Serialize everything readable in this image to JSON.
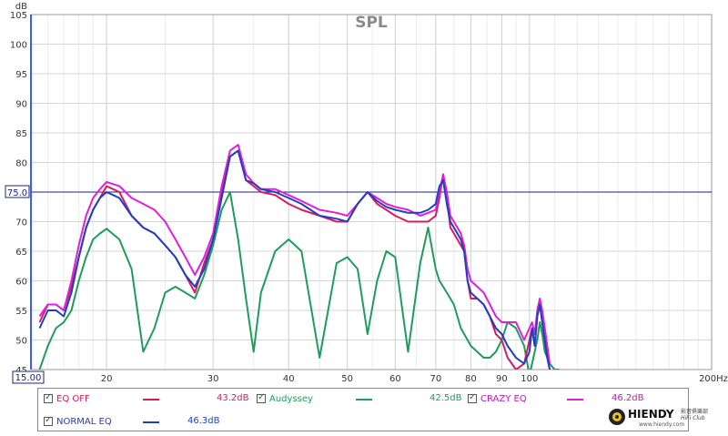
{
  "chart_data": {
    "type": "line",
    "title": "SPL",
    "ylabel": "dB",
    "x_unit": "Hz",
    "xlim": [
      15,
      200
    ],
    "ylim": [
      45,
      105
    ],
    "x_ticks": [
      20,
      30,
      40,
      50,
      60,
      70,
      80,
      90,
      100,
      200
    ],
    "x_tick_labels": [
      "20",
      "30",
      "40",
      "50",
      "60",
      "70",
      "80",
      "90",
      "100",
      "200Hz"
    ],
    "x_start_label": "15.00",
    "y_ticks": [
      45,
      50,
      55,
      60,
      65,
      70,
      75,
      80,
      85,
      90,
      95,
      100,
      105
    ],
    "reference_line": {
      "y": 75,
      "label": "75.0",
      "color": "#1a237e"
    },
    "series": [
      {
        "name": "EQ OFF",
        "color": "#d81b60",
        "level": "43.2dB",
        "x": [
          15.5,
          16,
          16.5,
          17,
          17.5,
          18,
          18.5,
          19,
          19.5,
          20,
          21,
          22,
          23,
          24,
          25,
          26,
          27,
          28,
          29,
          30,
          31,
          32,
          33,
          34,
          35,
          36,
          38,
          40,
          42,
          45,
          48,
          50,
          52,
          54,
          56,
          58,
          60,
          63,
          66,
          68,
          70,
          71,
          72,
          73,
          74,
          75,
          76,
          77,
          78,
          79,
          80,
          82,
          84,
          86,
          88,
          90,
          92,
          95,
          98,
          100,
          101,
          102,
          103,
          104,
          105,
          106,
          107,
          108
        ],
        "y": [
          53,
          56,
          56,
          55,
          59,
          64,
          69,
          72,
          74,
          76,
          75,
          71,
          69,
          68,
          66,
          64,
          61,
          58,
          63,
          67,
          75,
          81,
          82,
          77,
          76,
          75,
          74.5,
          73,
          72,
          71,
          70,
          70,
          73,
          75,
          73,
          72,
          71,
          70,
          70,
          70,
          71,
          74,
          78,
          74,
          69,
          68,
          67,
          66,
          65,
          60,
          57,
          57,
          56,
          54,
          51,
          50,
          47,
          45,
          46,
          50,
          52,
          49,
          54,
          56,
          53,
          50,
          47,
          45
        ]
      },
      {
        "name": "Audyssey",
        "color": "#1e9c5c",
        "level": "42.5dB",
        "x": [
          15.5,
          16,
          16.5,
          17,
          17.5,
          18,
          18.5,
          19,
          19.5,
          20,
          21,
          22,
          23,
          24,
          25,
          26,
          27,
          28,
          29,
          30,
          31,
          32,
          33,
          34,
          35,
          36,
          38,
          40,
          42,
          45,
          48,
          50,
          52,
          54,
          56,
          58,
          60,
          63,
          66,
          68,
          70,
          71,
          72,
          73,
          74,
          75,
          76,
          77,
          78,
          79,
          80,
          82,
          84,
          86,
          88,
          90,
          92,
          95,
          98,
          100,
          101,
          102,
          103,
          104,
          105,
          106,
          107,
          108,
          110,
          112
        ],
        "y": [
          45,
          49,
          52,
          53,
          55,
          60,
          64,
          67,
          68,
          68.8,
          67,
          62,
          48,
          52,
          58,
          59,
          58,
          57,
          61,
          66,
          72,
          75,
          67,
          57,
          48,
          58,
          65,
          67,
          65,
          47,
          63,
          64,
          62,
          51,
          60,
          65,
          64,
          48,
          63,
          69,
          62,
          60,
          59,
          58,
          57,
          56,
          54,
          52,
          51,
          50,
          49,
          48,
          47,
          47,
          48,
          50,
          53,
          52,
          49,
          44,
          46,
          48,
          50,
          53,
          51,
          48,
          47,
          46,
          45,
          45
        ]
      },
      {
        "name": "CRAZY EQ",
        "color": "#e020d8",
        "level": "46.2dB",
        "x": [
          15.5,
          16,
          16.5,
          17,
          17.5,
          18,
          18.5,
          19,
          19.5,
          20,
          21,
          22,
          23,
          24,
          25,
          26,
          27,
          28,
          29,
          30,
          31,
          32,
          33,
          34,
          35,
          36,
          38,
          40,
          42,
          45,
          48,
          50,
          52,
          54,
          56,
          58,
          60,
          63,
          66,
          68,
          70,
          71,
          72,
          73,
          74,
          75,
          76,
          77,
          78,
          79,
          80,
          82,
          84,
          86,
          88,
          90,
          92,
          95,
          98,
          100,
          101,
          102,
          103,
          104,
          105,
          106,
          107,
          108
        ],
        "y": [
          54,
          56,
          56,
          55,
          60,
          66,
          71,
          74,
          75.5,
          76.7,
          76,
          74,
          73,
          72,
          70,
          67,
          64,
          61,
          64,
          68,
          76,
          82,
          83,
          78,
          76.5,
          75.5,
          75.5,
          74.5,
          73.5,
          72,
          71.5,
          71,
          73,
          75,
          74,
          73,
          72.5,
          72,
          71,
          71.5,
          72,
          75,
          78,
          75,
          71,
          70,
          69,
          68,
          66,
          62,
          60,
          59,
          58,
          56,
          54,
          53,
          53,
          53,
          50,
          52,
          53,
          51,
          55,
          57,
          55,
          52,
          49,
          46
        ]
      },
      {
        "name": "NORMAL EQ",
        "color": "#1f3fbf",
        "level": "46.3dB",
        "x": [
          15.5,
          16,
          16.5,
          17,
          17.5,
          18,
          18.5,
          19,
          19.5,
          20,
          21,
          22,
          23,
          24,
          25,
          26,
          27,
          28,
          29,
          30,
          31,
          32,
          33,
          34,
          35,
          36,
          38,
          40,
          42,
          45,
          48,
          50,
          52,
          54,
          56,
          58,
          60,
          63,
          66,
          68,
          70,
          71,
          72,
          73,
          74,
          75,
          76,
          77,
          78,
          79,
          80,
          82,
          84,
          86,
          88,
          90,
          92,
          95,
          98,
          100,
          101,
          102,
          103,
          104,
          105,
          106,
          107,
          108
        ],
        "y": [
          52,
          55,
          55,
          54,
          58,
          64,
          69,
          72,
          74,
          75,
          74,
          71,
          69,
          68,
          66,
          64,
          61,
          59,
          62,
          67,
          74,
          81,
          82,
          77,
          76.5,
          75.5,
          75,
          74,
          73,
          71,
          70.5,
          70,
          73,
          75,
          73.5,
          72.5,
          72,
          71.5,
          71.5,
          72,
          73,
          76,
          77,
          73,
          70,
          69,
          68,
          67,
          65,
          60,
          58,
          57,
          56,
          54,
          52,
          51,
          49,
          47,
          46,
          48,
          52,
          49,
          54,
          56,
          53,
          50,
          47,
          45
        ]
      }
    ]
  },
  "legend": {
    "items": [
      {
        "label": "EQ OFF",
        "value": "43.2dB"
      },
      {
        "label": "Audyssey",
        "value": "42.5dB"
      },
      {
        "label": "CRAZY EQ",
        "value": "46.2dB"
      },
      {
        "label": "NORMAL EQ",
        "value": "46.3dB"
      }
    ]
  },
  "branding": {
    "name": "HIENDY",
    "sub": "HiFi Club",
    "url": "www.hiendy.com",
    "chinese": "影音俱樂部"
  }
}
